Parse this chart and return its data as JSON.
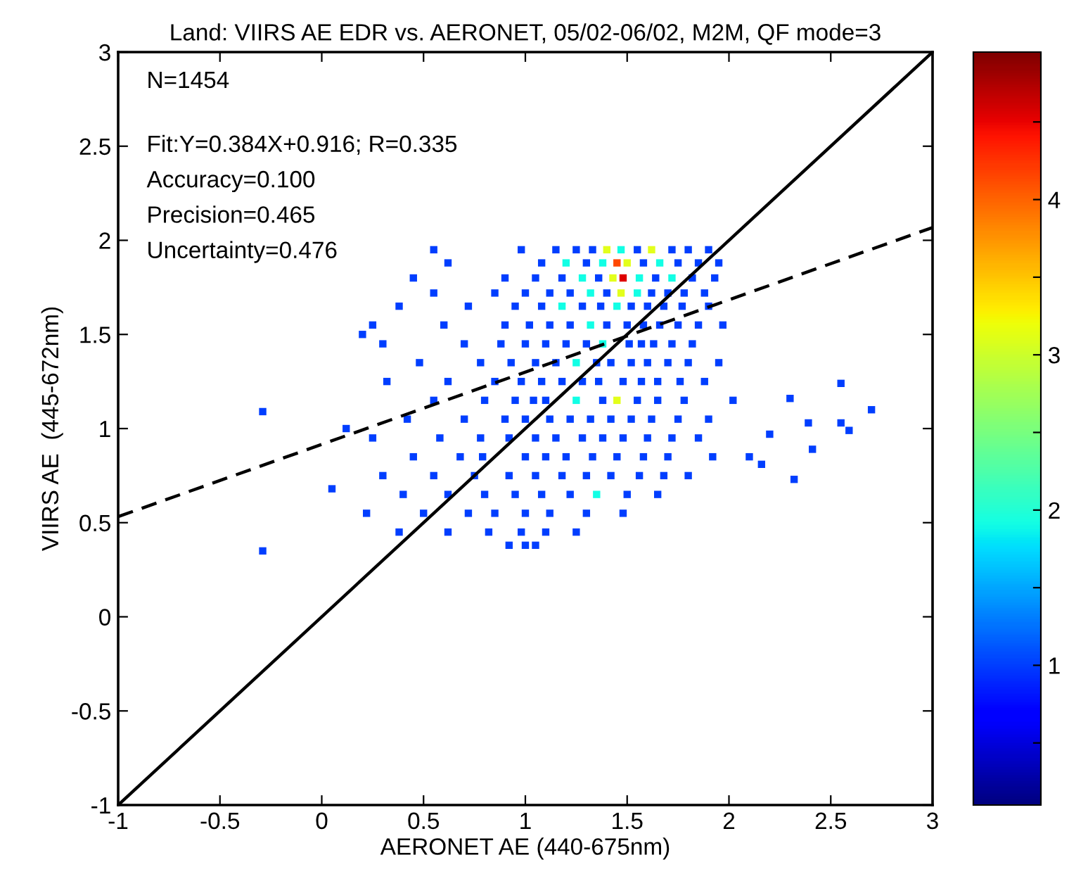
{
  "chart_data": {
    "type": "scatter",
    "title": "Land: VIIRS AE EDR vs. AERONET, 05/02-06/02, M2M, QF mode=3",
    "xlabel": "AERONET AE (440-675nm)",
    "ylabel": "VIIRS AE  (445-672nm)",
    "annotations": [
      "N=1454",
      "Fit:Y=0.384X+0.916; R=0.335",
      "Accuracy=0.100",
      "Precision=0.465",
      "Uncertainty=0.476"
    ],
    "xlim": [
      -1,
      3
    ],
    "ylim": [
      -1,
      3
    ],
    "xticks": [
      -1,
      -0.5,
      0,
      0.5,
      1,
      1.5,
      2,
      2.5,
      3
    ],
    "yticks": [
      -1,
      -0.5,
      0,
      0.5,
      1,
      1.5,
      2,
      2.5,
      3
    ],
    "clim": [
      0.1,
      4.95
    ],
    "cticks": [
      {
        "value": 0.5,
        "label": null
      },
      1,
      {
        "value": 1.5,
        "label": null
      },
      2,
      {
        "value": 2.5,
        "label": null
      },
      3,
      {
        "value": 3.5,
        "label": null
      },
      4,
      {
        "value": 4.5,
        "label": null
      }
    ],
    "marker": "square",
    "grid": false,
    "series": [
      {
        "x": [
          0.55,
          0.98,
          1.15,
          1.25,
          1.33,
          1.4,
          1.47,
          1.55,
          1.62,
          1.72,
          1.8,
          1.9
        ],
        "values": [
          1.95,
          1.95,
          1.95,
          1.95,
          1.95,
          1.95,
          1.95,
          1.95,
          1.95,
          1.95,
          1.95,
          1.95
        ],
        "colors": [
          "#003eff",
          "#003eff",
          "#003eff",
          "#003eff",
          "#003eff",
          "#e3ff1b",
          "#12ffe5",
          "#003eff",
          "#e3ff1b",
          "#003eff",
          "#003eff",
          "#003eff"
        ]
      },
      {
        "x": [
          0.62,
          1.08,
          1.2,
          1.3,
          1.38,
          1.45,
          1.5,
          1.58,
          1.66,
          1.75,
          1.85,
          1.95
        ],
        "values": [
          1.88,
          1.88,
          1.88,
          1.88,
          1.88,
          1.88,
          1.88,
          1.88,
          1.88,
          1.88,
          1.88,
          1.88
        ],
        "colors": [
          "#003eff",
          "#003eff",
          "#12ffe5",
          "#003eff",
          "#12ffe5",
          "#ff4800",
          "#e3ff1b",
          "#003eff",
          "#12ffe5",
          "#003eff",
          "#003eff",
          "#003eff"
        ]
      },
      {
        "x": [
          0.45,
          0.9,
          1.05,
          1.18,
          1.28,
          1.36,
          1.43,
          1.48,
          1.56,
          1.64,
          1.72,
          1.82,
          1.93
        ],
        "values": [
          1.8,
          1.8,
          1.8,
          1.8,
          1.8,
          1.8,
          1.8,
          1.8,
          1.8,
          1.8,
          1.8,
          1.8,
          1.8
        ],
        "colors": [
          "#003eff",
          "#003eff",
          "#003eff",
          "#003eff",
          "#12ffe5",
          "#003eff",
          "#e3ff1b",
          "#de0000",
          "#12ffe5",
          "#003eff",
          "#12ffe5",
          "#003eff",
          "#003eff"
        ]
      },
      {
        "x": [
          0.55,
          0.85,
          1.0,
          1.12,
          1.22,
          1.32,
          1.4,
          1.47,
          1.55,
          1.62,
          1.7,
          1.78,
          1.88
        ],
        "values": [
          1.72,
          1.72,
          1.72,
          1.72,
          1.72,
          1.72,
          1.72,
          1.72,
          1.72,
          1.72,
          1.72,
          1.72,
          1.72
        ],
        "colors": [
          "#003eff",
          "#003eff",
          "#003eff",
          "#003eff",
          "#003eff",
          "#12ffe5",
          "#003eff",
          "#e3ff1b",
          "#12ffe5",
          "#003eff",
          "#003eff",
          "#003eff",
          "#003eff"
        ]
      },
      {
        "x": [
          0.38,
          0.72,
          0.95,
          1.08,
          1.18,
          1.28,
          1.37,
          1.45,
          1.52,
          1.6,
          1.68,
          1.77,
          1.9
        ],
        "values": [
          1.65,
          1.65,
          1.65,
          1.65,
          1.65,
          1.65,
          1.65,
          1.65,
          1.65,
          1.65,
          1.65,
          1.65,
          1.65
        ],
        "colors": [
          "#003eff",
          "#003eff",
          "#003eff",
          "#003eff",
          "#12ffe5",
          "#003eff",
          "#003eff",
          "#12ffe5",
          "#003eff",
          "#003eff",
          "#003eff",
          "#003eff",
          "#003eff"
        ]
      },
      {
        "x": [
          0.25,
          0.6,
          0.9,
          1.02,
          1.12,
          1.22,
          1.32,
          1.4,
          1.5,
          1.58,
          1.66,
          1.75,
          1.85,
          1.97
        ],
        "values": [
          1.55,
          1.55,
          1.55,
          1.55,
          1.55,
          1.55,
          1.55,
          1.55,
          1.55,
          1.55,
          1.55,
          1.55,
          1.55,
          1.55
        ],
        "colors": [
          "#003eff",
          "#003eff",
          "#003eff",
          "#003eff",
          "#003eff",
          "#003eff",
          "#12ffe5",
          "#003eff",
          "#003eff",
          "#003eff",
          "#003eff",
          "#003eff",
          "#003eff",
          "#003eff"
        ]
      },
      {
        "x": [
          0.3,
          0.7,
          0.88,
          1.0,
          1.1,
          1.2,
          1.3,
          1.38,
          1.51,
          1.57,
          1.63,
          1.72,
          1.82
        ],
        "values": [
          1.45,
          1.45,
          1.45,
          1.45,
          1.45,
          1.45,
          1.45,
          1.45,
          1.45,
          1.45,
          1.45,
          1.45,
          1.45
        ],
        "colors": [
          "#003eff",
          "#003eff",
          "#003eff",
          "#003eff",
          "#003eff",
          "#003eff",
          "#003eff",
          "#12ffe5",
          "#003eff",
          "#003eff",
          "#003eff",
          "#003eff",
          "#003eff"
        ]
      },
      {
        "x": [
          0.48,
          0.78,
          0.93,
          1.05,
          1.15,
          1.25,
          1.35,
          1.42,
          1.52,
          1.6,
          1.7,
          1.8,
          1.95
        ],
        "values": [
          1.35,
          1.35,
          1.35,
          1.35,
          1.35,
          1.35,
          1.35,
          1.35,
          1.35,
          1.35,
          1.35,
          1.35,
          1.35
        ],
        "colors": [
          "#003eff",
          "#003eff",
          "#003eff",
          "#003eff",
          "#003eff",
          "#12ffe5",
          "#003eff",
          "#003eff",
          "#003eff",
          "#003eff",
          "#003eff",
          "#003eff",
          "#003eff"
        ]
      },
      {
        "x": [
          0.32,
          0.62,
          0.85,
          0.98,
          1.08,
          1.18,
          1.28,
          1.36,
          1.48,
          1.57,
          1.65,
          1.76,
          1.88
        ],
        "values": [
          1.25,
          1.25,
          1.25,
          1.25,
          1.25,
          1.25,
          1.25,
          1.25,
          1.25,
          1.25,
          1.25,
          1.25,
          1.25
        ],
        "color": "#003eff"
      },
      {
        "x": [
          0.55,
          0.8,
          0.95,
          1.04,
          1.1,
          1.25,
          1.38,
          1.45,
          1.55,
          1.65,
          1.78,
          2.02
        ],
        "values": [
          1.15,
          1.15,
          1.15,
          1.15,
          1.15,
          1.15,
          1.15,
          1.15,
          1.15,
          1.15,
          1.15,
          1.15
        ],
        "colors": [
          "#003eff",
          "#003eff",
          "#003eff",
          "#003eff",
          "#003eff",
          "#12ffe5",
          "#003eff",
          "#e3ff1b",
          "#003eff",
          "#003eff",
          "#003eff",
          "#003eff"
        ]
      },
      {
        "x": [
          0.42,
          0.7,
          0.9,
          1.0,
          1.12,
          1.22,
          1.32,
          1.42,
          1.52,
          1.62,
          1.75,
          1.9
        ],
        "values": [
          1.05,
          1.05,
          1.05,
          1.05,
          1.05,
          1.05,
          1.05,
          1.05,
          1.05,
          1.05,
          1.05,
          1.05
        ],
        "color": "#003eff"
      },
      {
        "x": [
          0.25,
          0.58,
          0.78,
          0.92,
          1.05,
          1.15,
          1.28,
          1.38,
          1.48,
          1.6,
          1.72,
          1.85
        ],
        "values": [
          0.95,
          0.95,
          0.95,
          0.95,
          0.95,
          0.95,
          0.95,
          0.95,
          0.95,
          0.95,
          0.95,
          0.95
        ],
        "color": "#003eff"
      },
      {
        "x": [
          0.45,
          0.68,
          0.79,
          1.0,
          1.1,
          1.2,
          1.33,
          1.45,
          1.58,
          1.7,
          1.92,
          2.1
        ],
        "values": [
          0.85,
          0.85,
          0.85,
          0.85,
          0.85,
          0.85,
          0.85,
          0.85,
          0.85,
          0.85,
          0.85,
          0.85
        ],
        "color": "#003eff"
      },
      {
        "x": [
          0.3,
          0.55,
          0.75,
          0.92,
          1.05,
          1.18,
          1.3,
          1.42,
          1.56,
          1.68,
          1.8
        ],
        "values": [
          0.75,
          0.75,
          0.75,
          0.75,
          0.75,
          0.75,
          0.75,
          0.75,
          0.75,
          0.75,
          0.75
        ],
        "color": "#003eff"
      },
      {
        "x": [
          0.4,
          0.62,
          0.8,
          0.95,
          1.08,
          1.22,
          1.35,
          1.5,
          1.65
        ],
        "values": [
          0.65,
          0.65,
          0.65,
          0.65,
          0.65,
          0.65,
          0.65,
          0.65,
          0.65
        ],
        "colors": [
          "#003eff",
          "#003eff",
          "#003eff",
          "#003eff",
          "#003eff",
          "#003eff",
          "#12ffe5",
          "#003eff",
          "#003eff"
        ]
      },
      {
        "x": [
          0.22,
          0.5,
          0.72,
          0.85,
          1.0,
          1.12,
          1.3,
          1.48
        ],
        "values": [
          0.55,
          0.55,
          0.55,
          0.55,
          0.55,
          0.55,
          0.55,
          0.55
        ],
        "color": "#003eff"
      },
      {
        "x": [
          0.38,
          0.62,
          0.82,
          0.98,
          1.1,
          1.25
        ],
        "values": [
          0.45,
          0.45,
          0.45,
          0.45,
          0.45,
          0.45
        ],
        "color": "#003eff"
      },
      {
        "x": [
          0.92,
          1.0,
          1.05
        ],
        "values": [
          0.38,
          0.38,
          0.38
        ],
        "color": "#003eff"
      },
      {
        "x": [
          -0.29,
          -0.29,
          0.05,
          0.12,
          0.2,
          2.55,
          2.3,
          2.39,
          2.55,
          2.59,
          2.41,
          2.2,
          2.32,
          2.16,
          2.7
        ],
        "values": [
          1.09,
          0.35,
          0.68,
          1.0,
          1.5,
          1.24,
          1.16,
          1.03,
          1.03,
          0.99,
          0.89,
          0.97,
          0.73,
          0.81,
          1.1
        ],
        "color": "#003eff"
      },
      {
        "type": "line",
        "marker": "none",
        "x": [
          -1,
          3
        ],
        "values": [
          -1,
          3
        ],
        "color": "#000000",
        "line_style": "solid"
      },
      {
        "type": "line",
        "marker": "none",
        "x": [
          -1,
          3
        ],
        "values": [
          0.532,
          2.068
        ],
        "color": "#000000",
        "line_style": "dashed"
      }
    ]
  }
}
